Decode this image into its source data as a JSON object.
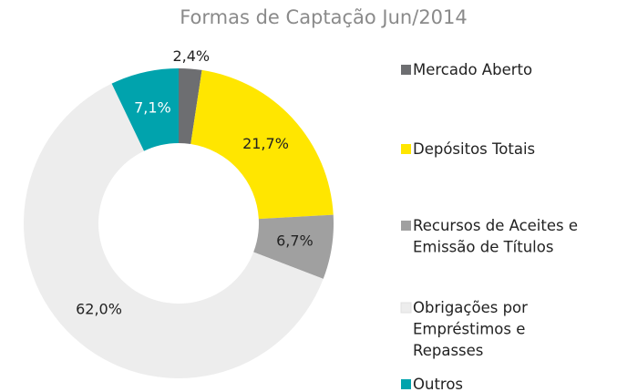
{
  "chart_data": {
    "type": "donut",
    "title": "Formas de Captação Jun/2014",
    "categories": [
      "Mercado Aberto",
      "Depósitos Totais",
      "Recursos de Aceites e Emissão de Títulos",
      "Obrigações por Empréstimos e Repasses",
      "Outros"
    ],
    "values": [
      2.4,
      21.7,
      6.7,
      62.0,
      7.1
    ],
    "value_labels": [
      "2,4%",
      "21,7%",
      "6,7%",
      "62,0%",
      "7,1%"
    ],
    "colors": [
      "#6d6e71",
      "#ffe600",
      "#a0a0a0",
      "#ededed",
      "#00a3ad"
    ],
    "legend": "right"
  }
}
